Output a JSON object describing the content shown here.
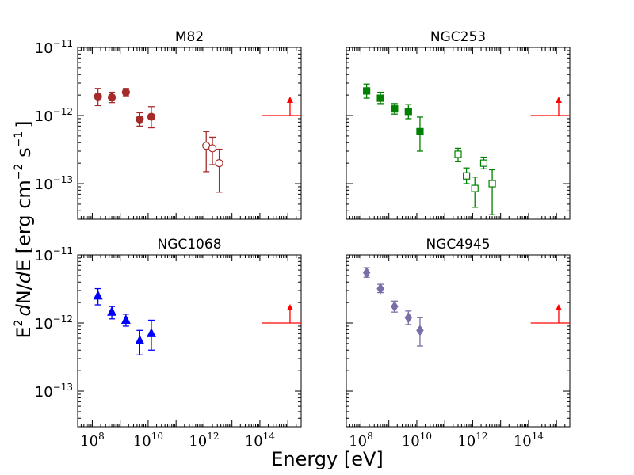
{
  "figure": {
    "xlabel": "Energy [eV]",
    "ylabel": {
      "prefix": "E",
      "prefix_sup": "2",
      "d1": "d",
      "mid": "N/",
      "d2": "d",
      "mid2": "E [erg cm",
      "sup1": "−2",
      "mid3": " s",
      "sup2": "−1",
      "suffix": "]"
    }
  },
  "chart_data": [
    {
      "type": "scatter",
      "title": "M82",
      "xscale": "log",
      "yscale": "log",
      "xlim": [
        30000000,
        3000000000000000.0
      ],
      "ylim": [
        3e-14,
        1e-11
      ],
      "marker": "circle",
      "color": "#a52a2a",
      "series": [
        {
          "name": "filled",
          "filled": true,
          "points": [
            {
              "x": 160000000.0,
              "y": 1.9e-12,
              "lo": 1.4e-12,
              "hi": 2.5e-12
            },
            {
              "x": 500000000.0,
              "y": 1.85e-12,
              "lo": 1.55e-12,
              "hi": 2.2e-12
            },
            {
              "x": 1600000000.0,
              "y": 2.2e-12,
              "lo": 1.95e-12,
              "hi": 2.5e-12
            },
            {
              "x": 5000000000.0,
              "y": 8.8e-13,
              "lo": 7e-13,
              "hi": 1.1e-12
            },
            {
              "x": 13000000000.0,
              "y": 9.6e-13,
              "lo": 6.6e-13,
              "hi": 1.35e-12
            }
          ]
        },
        {
          "name": "open",
          "filled": false,
          "points": [
            {
              "x": 1200000000000.0,
              "y": 3.6e-13,
              "lo": 1.5e-13,
              "hi": 5.8e-13
            },
            {
              "x": 2000000000000.0,
              "y": 3.3e-13,
              "lo": 1.9e-13,
              "hi": 4.8e-13
            },
            {
              "x": 3500000000000.0,
              "y": 2e-13,
              "lo": 7.5e-14,
              "hi": 3.2e-13
            }
          ]
        }
      ],
      "limit": {
        "x_start": 120000000000000.0,
        "x_end": 3000000000000000.0,
        "y": 1e-12,
        "arrow_x": 1200000000000000.0,
        "arrow_top": 1.8e-12
      }
    },
    {
      "type": "scatter",
      "title": "NGC253",
      "xscale": "log",
      "yscale": "log",
      "xlim": [
        30000000,
        3000000000000000.0
      ],
      "ylim": [
        3e-14,
        1e-11
      ],
      "marker": "square",
      "color": "#008000",
      "series": [
        {
          "name": "filled",
          "filled": true,
          "points": [
            {
              "x": 160000000.0,
              "y": 2.3e-12,
              "lo": 1.8e-12,
              "hi": 2.9e-12
            },
            {
              "x": 500000000.0,
              "y": 1.8e-12,
              "lo": 1.5e-12,
              "hi": 2.2e-12
            },
            {
              "x": 1600000000.0,
              "y": 1.25e-12,
              "lo": 1.05e-12,
              "hi": 1.5e-12
            },
            {
              "x": 5000000000.0,
              "y": 1.15e-12,
              "lo": 9e-13,
              "hi": 1.45e-12
            },
            {
              "x": 13000000000.0,
              "y": 5.8e-13,
              "lo": 3e-13,
              "hi": 9.5e-13
            }
          ]
        },
        {
          "name": "open",
          "filled": false,
          "points": [
            {
              "x": 300000000000.0,
              "y": 2.7e-13,
              "lo": 2.1e-13,
              "hi": 3.3e-13
            },
            {
              "x": 600000000000.0,
              "y": 1.3e-13,
              "lo": 1e-13,
              "hi": 1.7e-13
            },
            {
              "x": 1200000000000.0,
              "y": 8.5e-14,
              "lo": 4.5e-14,
              "hi": 1.25e-13
            },
            {
              "x": 2500000000000.0,
              "y": 2e-13,
              "lo": 1.65e-13,
              "hi": 2.45e-13
            },
            {
              "x": 5000000000000.0,
              "y": 1e-13,
              "lo": 3.5e-14,
              "hi": 1.6e-13
            }
          ]
        }
      ],
      "limit": {
        "x_start": 120000000000000.0,
        "x_end": 3000000000000000.0,
        "y": 1e-12,
        "arrow_x": 1200000000000000.0,
        "arrow_top": 1.8e-12
      }
    },
    {
      "type": "scatter",
      "title": "NGC1068",
      "xscale": "log",
      "yscale": "log",
      "xlim": [
        30000000,
        3000000000000000.0
      ],
      "ylim": [
        3e-14,
        1e-11
      ],
      "marker": "triangle",
      "color": "#0000ff",
      "series": [
        {
          "name": "filled",
          "filled": true,
          "points": [
            {
              "x": 160000000.0,
              "y": 2.5e-12,
              "lo": 1.85e-12,
              "hi": 3.2e-12
            },
            {
              "x": 500000000.0,
              "y": 1.45e-12,
              "lo": 1.15e-12,
              "hi": 1.75e-12
            },
            {
              "x": 1600000000.0,
              "y": 1.1e-12,
              "lo": 9e-13,
              "hi": 1.35e-12
            },
            {
              "x": 5000000000.0,
              "y": 5.5e-13,
              "lo": 3.4e-13,
              "hi": 7.8e-13
            },
            {
              "x": 13000000000.0,
              "y": 7e-13,
              "lo": 4e-13,
              "hi": 1.1e-12
            }
          ]
        }
      ],
      "limit": {
        "x_start": 120000000000000.0,
        "x_end": 3000000000000000.0,
        "y": 1e-12,
        "arrow_x": 1200000000000000.0,
        "arrow_top": 1.8e-12
      }
    },
    {
      "type": "scatter",
      "title": "NGC4945",
      "xscale": "log",
      "yscale": "log",
      "xlim": [
        30000000,
        3000000000000000.0
      ],
      "ylim": [
        3e-14,
        1e-11
      ],
      "marker": "diamond",
      "color": "#7a6da8",
      "series": [
        {
          "name": "filled",
          "filled": true,
          "points": [
            {
              "x": 160000000.0,
              "y": 5.5e-12,
              "lo": 4.7e-12,
              "hi": 6.5e-12
            },
            {
              "x": 500000000.0,
              "y": 3.2e-12,
              "lo": 2.8e-12,
              "hi": 3.7e-12
            },
            {
              "x": 1600000000.0,
              "y": 1.75e-12,
              "lo": 1.45e-12,
              "hi": 2.1e-12
            },
            {
              "x": 5000000000.0,
              "y": 1.2e-12,
              "lo": 9.5e-13,
              "hi": 1.5e-12
            },
            {
              "x": 13000000000.0,
              "y": 7.8e-13,
              "lo": 4.6e-13,
              "hi": 1.2e-12
            }
          ]
        }
      ],
      "limit": {
        "x_start": 120000000000000.0,
        "x_end": 3000000000000000.0,
        "y": 1e-12,
        "arrow_x": 1200000000000000.0,
        "arrow_top": 1.8e-12
      }
    }
  ],
  "axes_ticks": {
    "x": [
      {
        "base": "10",
        "exp": "8",
        "value": 100000000.0
      },
      {
        "base": "10",
        "exp": "10",
        "value": 10000000000.0
      },
      {
        "base": "10",
        "exp": "12",
        "value": 1000000000000.0
      },
      {
        "base": "10",
        "exp": "14",
        "value": 100000000000000.0
      }
    ],
    "y": [
      {
        "base": "10",
        "exp": "−11",
        "value": 1e-11
      },
      {
        "base": "10",
        "exp": "−12",
        "value": 1e-12
      },
      {
        "base": "10",
        "exp": "−13",
        "value": 1e-13
      }
    ]
  },
  "limit_color": "#ff0000"
}
